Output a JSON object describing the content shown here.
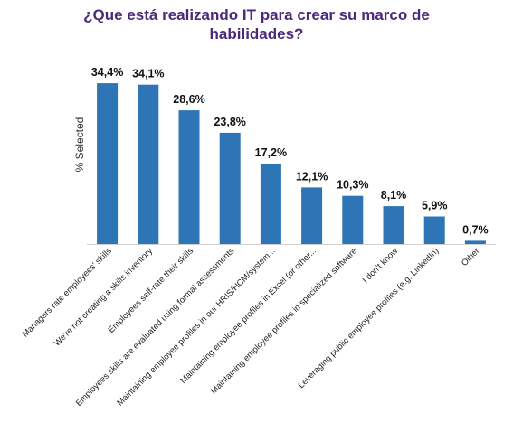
{
  "chart_data": {
    "type": "bar",
    "title_lines": [
      "¿Que está realizando IT para crear  su marco de",
      "habilidades?"
    ],
    "ylabel": "% Selected",
    "xlabel": "",
    "categories": [
      "Managers rate employees' skills",
      "We're not creating a skills inventory",
      "Employees self-rate their skills",
      "Employees skills are evaluated using formal assessments",
      "Maintaining employee profiles in our HRIS/HCM/system...",
      "Maintaining employee profiles in Excel (or other...",
      "Maintaining employee profiles in specialized software",
      "I don't know",
      "Leveraging public employee profiles (e.g. LinkedIn)",
      "Other"
    ],
    "values": [
      34.4,
      34.1,
      28.6,
      23.8,
      17.2,
      12.1,
      10.3,
      8.1,
      5.9,
      0.7
    ],
    "value_labels": [
      "34,4%",
      "34,1%",
      "28,6%",
      "23,8%",
      "17,2%",
      "12,1%",
      "10,3%",
      "8,1%",
      "5,9%",
      "0,7%"
    ],
    "ylim": [
      0,
      35
    ],
    "grid": false,
    "legend": "none",
    "bar_color": "#2e75b6",
    "title_color": "#4a2a7a"
  }
}
